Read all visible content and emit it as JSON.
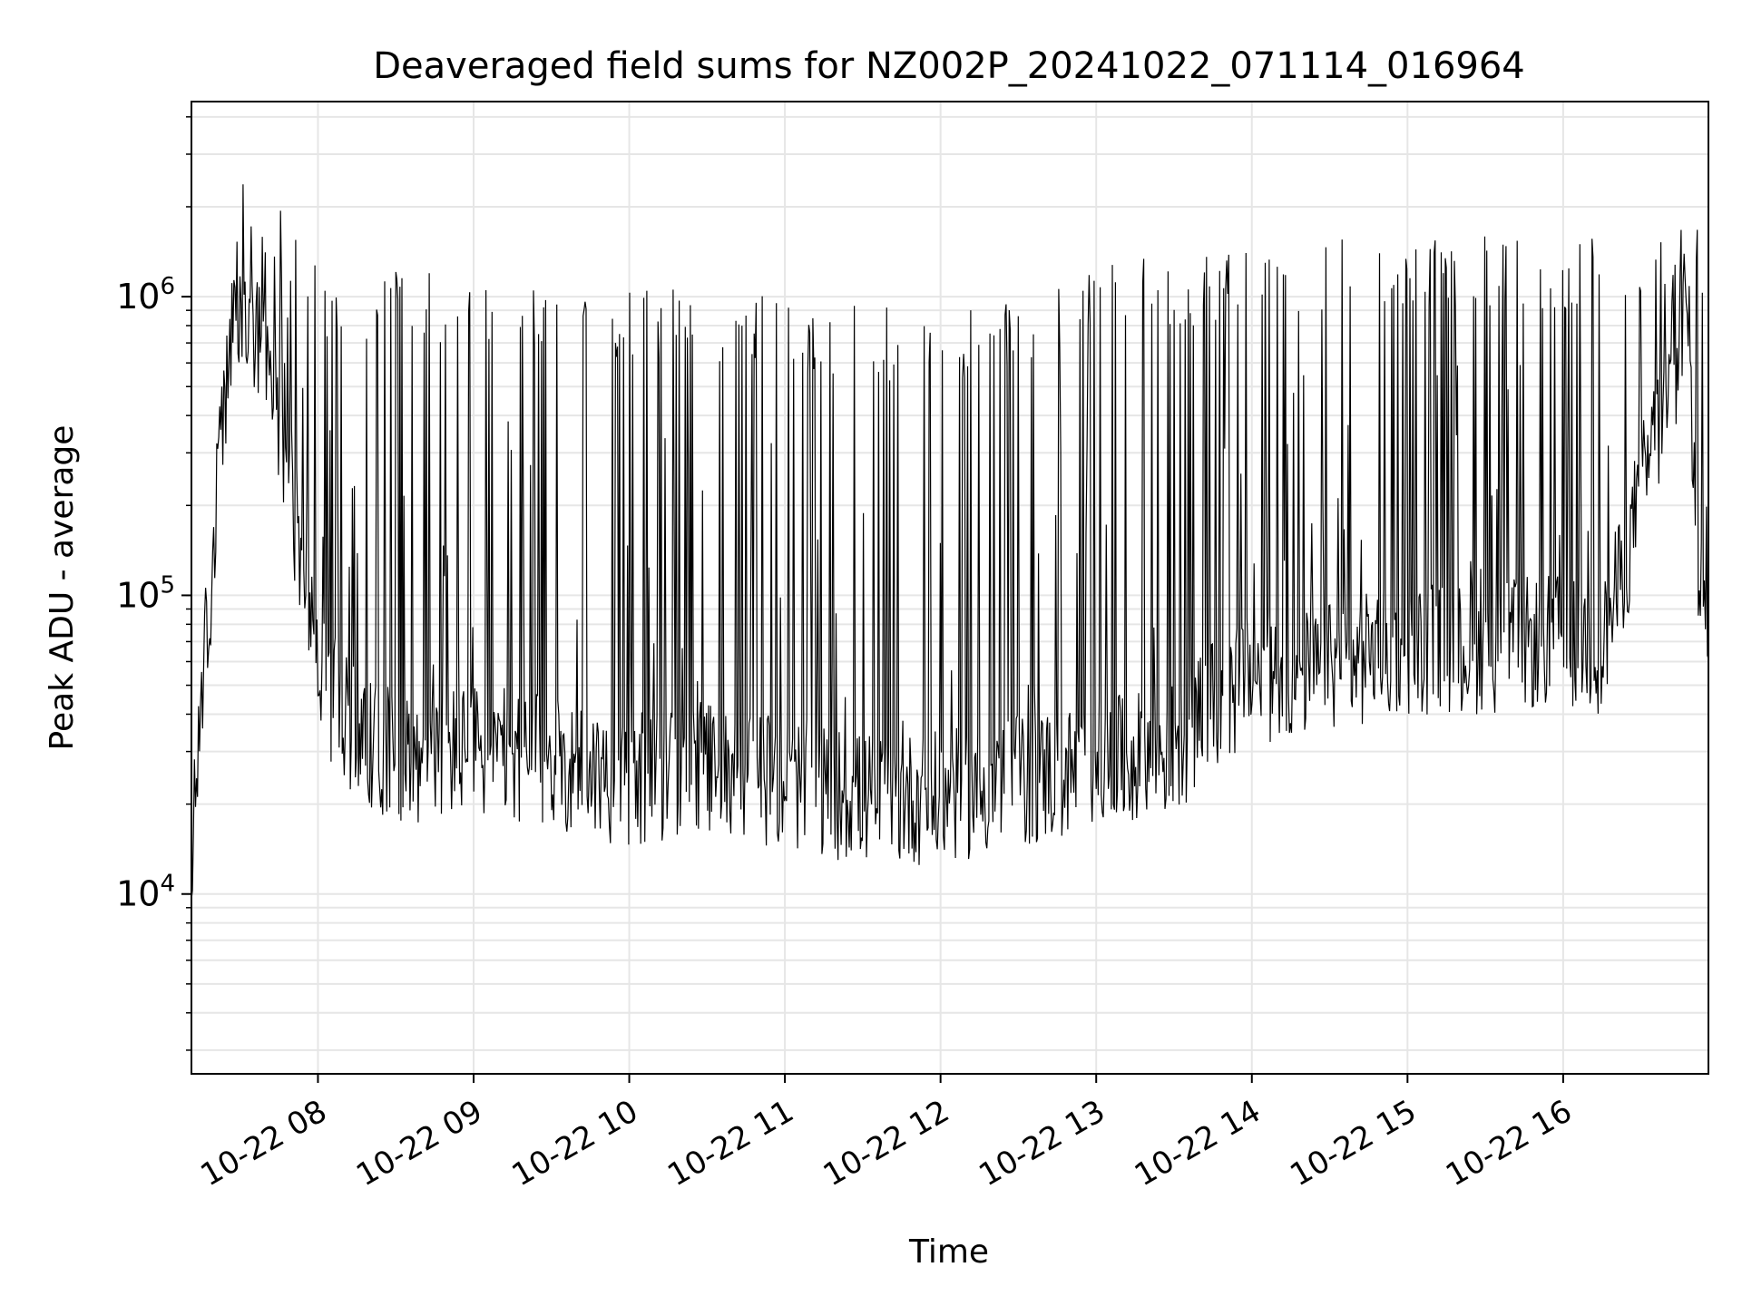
{
  "chart_data": {
    "type": "line",
    "title": "Deaveraged field sums for NZ002P_20241022_071114_016964",
    "xlabel": "Time",
    "ylabel": "Peak ADU - average",
    "xscale": "time",
    "yscale": "log",
    "xlim": [
      "2024-10-22T07:11:14",
      "2024-10-22T16:56:00"
    ],
    "ylim": [
      2500,
      4500000
    ],
    "grid": true,
    "colors": {
      "line": "#000000",
      "grid": "#e6e6e6",
      "axes": "#000000"
    },
    "x_ticks": [
      {
        "t": "2024-10-22T08:00",
        "label": "10-22 08"
      },
      {
        "t": "2024-10-22T09:00",
        "label": "10-22 09"
      },
      {
        "t": "2024-10-22T10:00",
        "label": "10-22 10"
      },
      {
        "t": "2024-10-22T11:00",
        "label": "10-22 11"
      },
      {
        "t": "2024-10-22T12:00",
        "label": "10-22 12"
      },
      {
        "t": "2024-10-22T13:00",
        "label": "10-22 13"
      },
      {
        "t": "2024-10-22T14:00",
        "label": "10-22 14"
      },
      {
        "t": "2024-10-22T15:00",
        "label": "10-22 15"
      },
      {
        "t": "2024-10-22T16:00",
        "label": "10-22 16"
      }
    ],
    "y_ticks": [
      {
        "value": 10000,
        "base": "10",
        "exp": "4"
      },
      {
        "value": 100000,
        "base": "10",
        "exp": "5"
      },
      {
        "value": 1000000,
        "base": "10",
        "exp": "6"
      }
    ],
    "series": [
      {
        "baseline": [
          [
            "2024-10-22T07:11",
            9000
          ],
          [
            "2024-10-22T07:14",
            40000
          ],
          [
            "2024-10-22T07:18",
            90000
          ],
          [
            "2024-10-22T07:22",
            300000
          ],
          [
            "2024-10-22T07:26",
            700000
          ],
          [
            "2024-10-22T07:32",
            900000
          ],
          [
            "2024-10-22T07:40",
            600000
          ],
          [
            "2024-10-22T07:47",
            300000
          ],
          [
            "2024-10-22T07:55",
            120000
          ],
          [
            "2024-10-22T08:00",
            60000
          ],
          [
            "2024-10-22T08:10",
            40000
          ],
          [
            "2024-10-22T08:30",
            30000
          ],
          [
            "2024-10-22T09:00",
            32000
          ],
          [
            "2024-10-22T09:20",
            30000
          ],
          [
            "2024-10-22T09:40",
            28000
          ],
          [
            "2024-10-22T10:00",
            25000
          ],
          [
            "2024-10-22T10:30",
            28000
          ],
          [
            "2024-10-22T11:00",
            25000
          ],
          [
            "2024-10-22T11:30",
            22000
          ],
          [
            "2024-10-22T12:00",
            22000
          ],
          [
            "2024-10-22T12:30",
            25000
          ],
          [
            "2024-10-22T13:00",
            28000
          ],
          [
            "2024-10-22T13:30",
            32000
          ],
          [
            "2024-10-22T13:45",
            45000
          ],
          [
            "2024-10-22T14:00",
            55000
          ],
          [
            "2024-10-22T14:30",
            60000
          ],
          [
            "2024-10-22T15:00",
            70000
          ],
          [
            "2024-10-22T15:30",
            70000
          ],
          [
            "2024-10-22T16:00",
            75000
          ],
          [
            "2024-10-22T16:15",
            70000
          ],
          [
            "2024-10-22T16:25",
            150000
          ],
          [
            "2024-10-22T16:35",
            350000
          ],
          [
            "2024-10-22T16:45",
            600000
          ],
          [
            "2024-10-22T16:48",
            1200000
          ],
          [
            "2024-10-22T16:51",
            150000
          ],
          [
            "2024-10-22T16:56",
            100000
          ]
        ],
        "spike_peaks": [
          [
            "2024-10-22T07:11",
            15000
          ],
          [
            "2024-10-22T07:30",
            3000000
          ],
          [
            "2024-10-22T08:00",
            1300000
          ],
          [
            "2024-10-22T09:00",
            1200000
          ],
          [
            "2024-10-22T10:00",
            1100000
          ],
          [
            "2024-10-22T11:00",
            1000000
          ],
          [
            "2024-10-22T11:30",
            950000
          ],
          [
            "2024-10-22T12:00",
            900000
          ],
          [
            "2024-10-22T12:30",
            1050000
          ],
          [
            "2024-10-22T13:00",
            1250000
          ],
          [
            "2024-10-22T13:30",
            1400000
          ],
          [
            "2024-10-22T14:00",
            1500000
          ],
          [
            "2024-10-22T15:00",
            1600000
          ],
          [
            "2024-10-22T16:00",
            1600000
          ],
          [
            "2024-10-22T16:50",
            1800000
          ]
        ]
      }
    ]
  }
}
